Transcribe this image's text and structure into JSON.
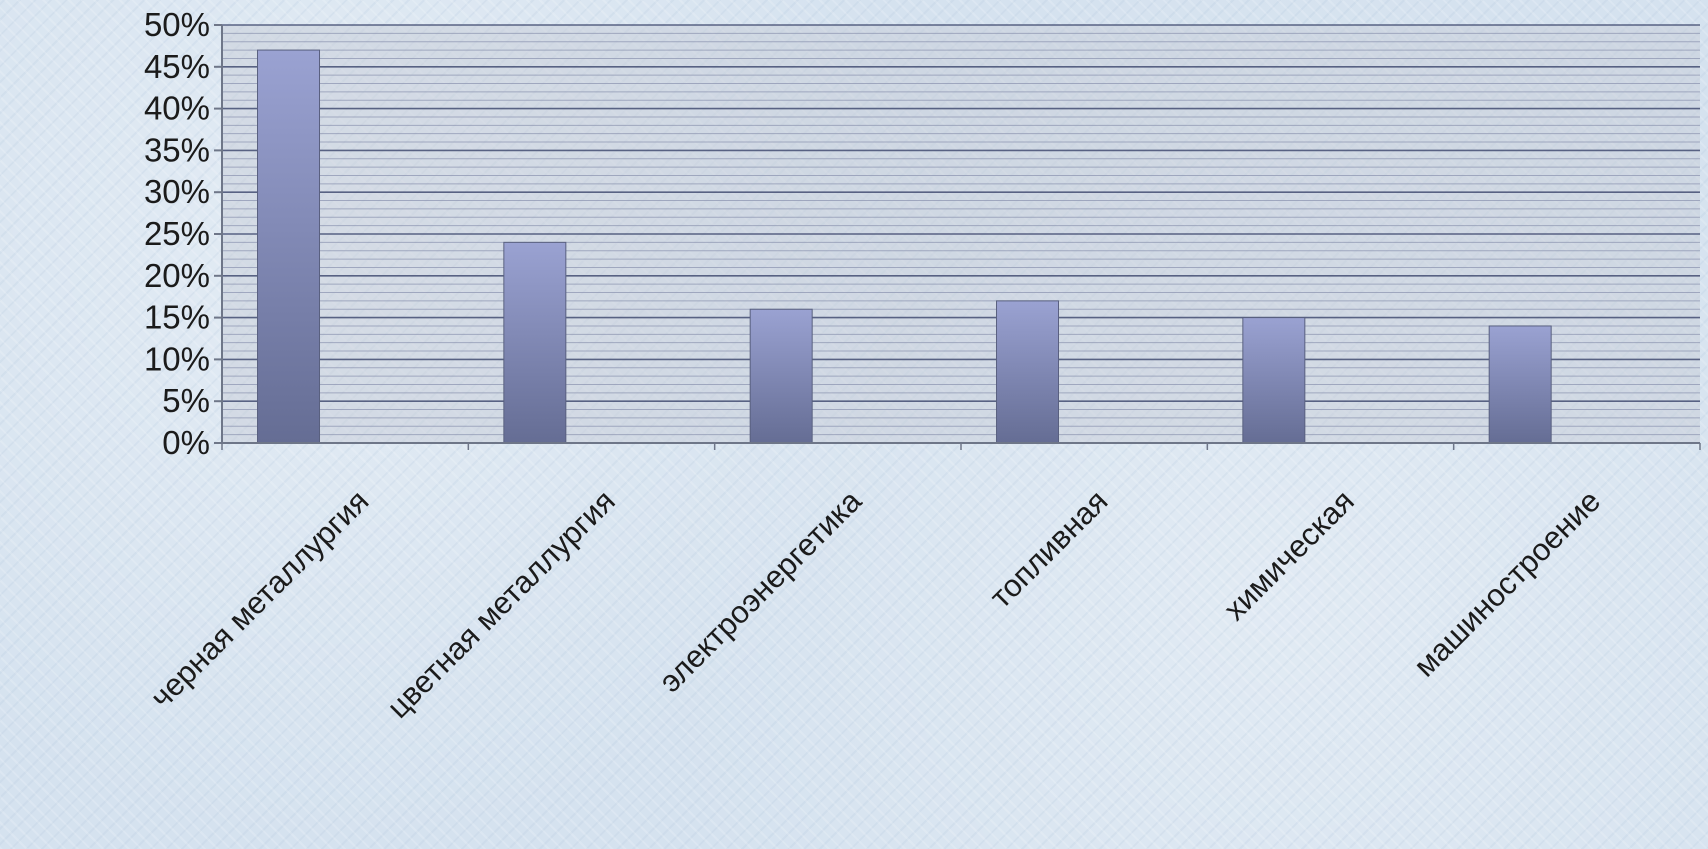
{
  "chart_data": {
    "type": "bar",
    "categories": [
      "черная металлургия",
      "цветная металлургия",
      "электроэнергетика",
      "топливная",
      "химическая",
      "машиностроение"
    ],
    "series": [
      {
        "values": [
          47,
          24,
          16,
          17,
          15,
          14
        ]
      }
    ],
    "y_ticks": [
      "0%",
      "5%",
      "10%",
      "15%",
      "20%",
      "25%",
      "30%",
      "35%",
      "40%",
      "45%",
      "50%"
    ],
    "ylim": [
      0,
      50
    ],
    "y_unit": "%",
    "grid": true,
    "legend": "none",
    "colors": {
      "bar_top": "#9aa2d2",
      "bar_bottom": "#656d94",
      "plot_bg": "#c9ced8",
      "grid_major": "#4a5478",
      "grid_minor": "#8d96b2",
      "axis": "#6e7688"
    }
  }
}
